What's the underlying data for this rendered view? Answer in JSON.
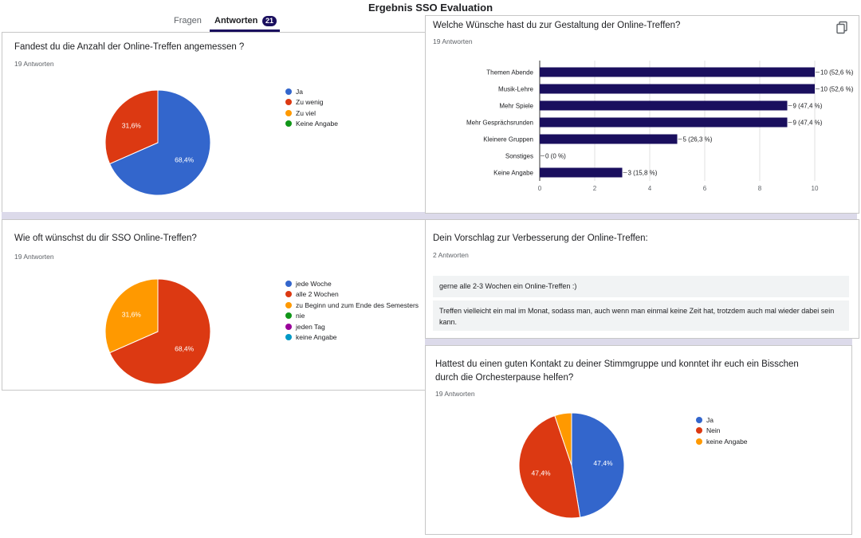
{
  "page_title": "Ergebnis SSO Evaluation",
  "tabs": [
    {
      "label": "Fragen"
    },
    {
      "label": "Antworten",
      "count": "21"
    }
  ],
  "colors": {
    "blue": "#3366cc",
    "red": "#dc3912",
    "orange": "#ff9900",
    "green": "#109618",
    "purple": "#990099",
    "teal": "#0099c6",
    "navy": "#1a0f5e"
  },
  "q1": {
    "title": "Fandest du die Anzahl der Online-Treffen angemessen ?",
    "responses": "19 Antworten",
    "legend": [
      "Ja",
      "Zu wenig",
      "Zu viel",
      "Keine Angabe"
    ]
  },
  "q2": {
    "title": "Welche Wünsche hast du zur Gestaltung der Online-Treffen?",
    "responses": "19 Antworten"
  },
  "q3": {
    "title": "Wie oft wünschst du dir SSO Online-Treffen?",
    "responses": "19 Antworten",
    "legend": [
      "jede Woche",
      "alle 2 Wochen",
      "zu Beginn und zum Ende des Semesters",
      "nie",
      "jeden Tag",
      "keine Angabe"
    ]
  },
  "q4": {
    "title": "Dein Vorschlag zur Verbesserung der Online-Treffen:",
    "responses": "2 Antworten",
    "answers": [
      "gerne alle 2-3 Wochen ein Online-Treffen :)",
      "Treffen vielleicht ein mal im Monat, sodass man, auch wenn man einmal keine Zeit hat, trotzdem auch mal wieder dabei sein kann."
    ]
  },
  "q5": {
    "title_line1": "Hattest du einen guten Kontakt zu deiner Stimmgruppe und konntet ihr euch ein Bisschen",
    "title_line2": "durch die Orchesterpause helfen?",
    "responses": "19 Antworten",
    "legend": [
      "Ja",
      "Nein",
      "keine Angabe"
    ]
  },
  "chart_data": [
    {
      "type": "pie",
      "id": "q1",
      "categories": [
        "Ja",
        "Zu wenig",
        "Zu viel",
        "Keine Angabe"
      ],
      "values": [
        68.4,
        31.6,
        0,
        0
      ],
      "labels": [
        "68,4%",
        "31,6%",
        "",
        ""
      ],
      "colors": [
        "#3366cc",
        "#dc3912",
        "#ff9900",
        "#109618"
      ]
    },
    {
      "type": "bar",
      "orientation": "horizontal",
      "id": "q2",
      "categories": [
        "Themen Abende",
        "Musik-Lehre",
        "Mehr Spiele",
        "Mehr Gesprächsrunden",
        "Kleinere Gruppen",
        "Sonstiges",
        "Keine Angabe"
      ],
      "values": [
        10,
        10,
        9,
        9,
        5,
        0,
        3
      ],
      "data_labels": [
        "10 (52,6 %)",
        "10 (52,6 %)",
        "9 (47,4 %)",
        "9 (47,4 %)",
        "5 (26,3 %)",
        "0 (0 %)",
        "3 (15,8 %)"
      ],
      "xlim": [
        0,
        10
      ],
      "xticks": [
        0,
        2,
        4,
        6,
        8,
        10
      ],
      "color": "#1a0f5e"
    },
    {
      "type": "pie",
      "id": "q3",
      "categories": [
        "jede Woche",
        "alle 2 Wochen",
        "zu Beginn und zum Ende des Semesters",
        "nie",
        "jeden Tag",
        "keine Angabe"
      ],
      "values": [
        0,
        68.4,
        31.6,
        0,
        0,
        0
      ],
      "labels": [
        "",
        "68,4%",
        "31,6%",
        "",
        "",
        ""
      ],
      "colors": [
        "#3366cc",
        "#dc3912",
        "#ff9900",
        "#109618",
        "#990099",
        "#0099c6"
      ]
    },
    {
      "type": "pie",
      "id": "q5",
      "categories": [
        "Ja",
        "Nein",
        "keine Angabe"
      ],
      "values": [
        47.4,
        47.4,
        5.2
      ],
      "labels": [
        "47,4%",
        "47,4%",
        ""
      ],
      "colors": [
        "#3366cc",
        "#dc3912",
        "#ff9900"
      ]
    }
  ]
}
